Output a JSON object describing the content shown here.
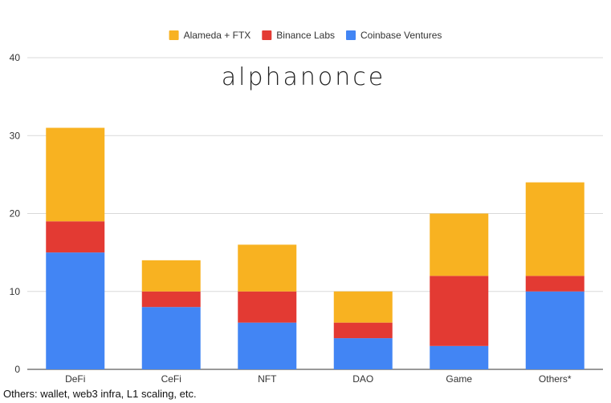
{
  "logo_text": "alphanonce",
  "footnote": "Others: wallet, web3 infra, L1 scaling, etc.",
  "chart_data": {
    "type": "bar",
    "stacked": true,
    "categories": [
      "DeFi",
      "CeFi",
      "NFT",
      "DAO",
      "Game",
      "Others*"
    ],
    "series": [
      {
        "name": "Coinbase Ventures",
        "color": "#4285f4",
        "values": [
          15,
          8,
          6,
          4,
          3,
          10
        ]
      },
      {
        "name": "Binance Labs",
        "color": "#e33a33",
        "values": [
          4,
          2,
          4,
          2,
          9,
          2
        ]
      },
      {
        "name": "Alameda + FTX",
        "color": "#f8b221",
        "values": [
          12,
          4,
          6,
          4,
          8,
          12
        ]
      }
    ],
    "legend_order": [
      "Alameda + FTX",
      "Binance Labs",
      "Coinbase Ventures"
    ],
    "ylim": [
      0,
      40
    ],
    "yticks": [
      0,
      10,
      20,
      30,
      40
    ],
    "grid": true,
    "legend_position": "top-center",
    "title": "",
    "xlabel": "",
    "ylabel": ""
  }
}
